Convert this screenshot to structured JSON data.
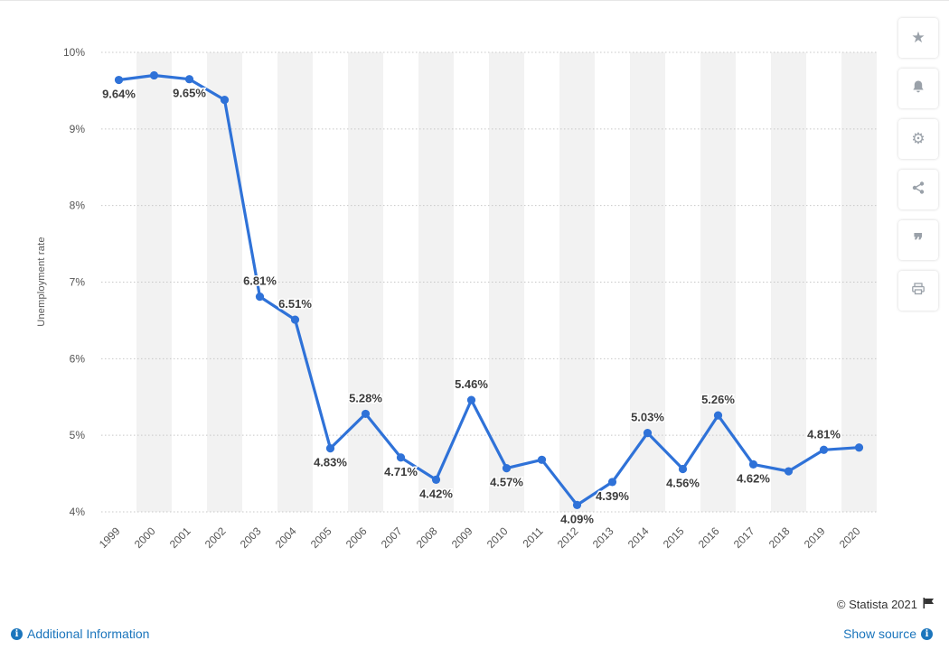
{
  "chart_data": {
    "type": "line",
    "title": "",
    "xlabel": "",
    "ylabel": "Unemployment rate",
    "ylim": [
      4,
      10
    ],
    "yticks": [
      4,
      5,
      6,
      7,
      8,
      9,
      10
    ],
    "ytick_labels": [
      "4%",
      "5%",
      "6%",
      "7%",
      "8%",
      "9%",
      "10%"
    ],
    "grid": true,
    "categories": [
      "1999",
      "2000",
      "2001",
      "2002",
      "2003",
      "2004",
      "2005",
      "2006",
      "2007",
      "2008",
      "2009",
      "2010",
      "2011",
      "2012",
      "2013",
      "2014",
      "2015",
      "2016",
      "2017",
      "2018",
      "2019",
      "2020"
    ],
    "series": [
      {
        "values": [
          9.64,
          9.7,
          9.65,
          9.38,
          6.81,
          6.51,
          4.83,
          5.28,
          4.71,
          4.42,
          5.46,
          4.57,
          4.68,
          4.09,
          4.39,
          5.03,
          4.56,
          5.26,
          4.62,
          4.53,
          4.81,
          4.84
        ],
        "data_labels": [
          "9.64%",
          "",
          "9.65%",
          "",
          "6.81%",
          "6.51%",
          "4.83%",
          "5.28%",
          "4.71%",
          "4.42%",
          "5.46%",
          "4.57%",
          "",
          "4.09%",
          "4.39%",
          "5.03%",
          "4.56%",
          "5.26%",
          "4.62%",
          "",
          "4.81%",
          ""
        ]
      }
    ],
    "colors": {
      "line": "#2f72d8",
      "band": "#f2f2f2",
      "grid": "#c8c8c8"
    }
  },
  "toolbar": {
    "items": [
      {
        "name": "star-icon",
        "glyph": "★"
      },
      {
        "name": "bell-icon",
        "glyph": ""
      },
      {
        "name": "gear-icon",
        "glyph": "⚙"
      },
      {
        "name": "share-icon",
        "glyph": ""
      },
      {
        "name": "quote-icon",
        "glyph": "❞"
      },
      {
        "name": "print-icon",
        "glyph": ""
      }
    ]
  },
  "footer": {
    "copyright": "© Statista 2021",
    "additional_info": "Additional Information",
    "show_source": "Show source"
  }
}
